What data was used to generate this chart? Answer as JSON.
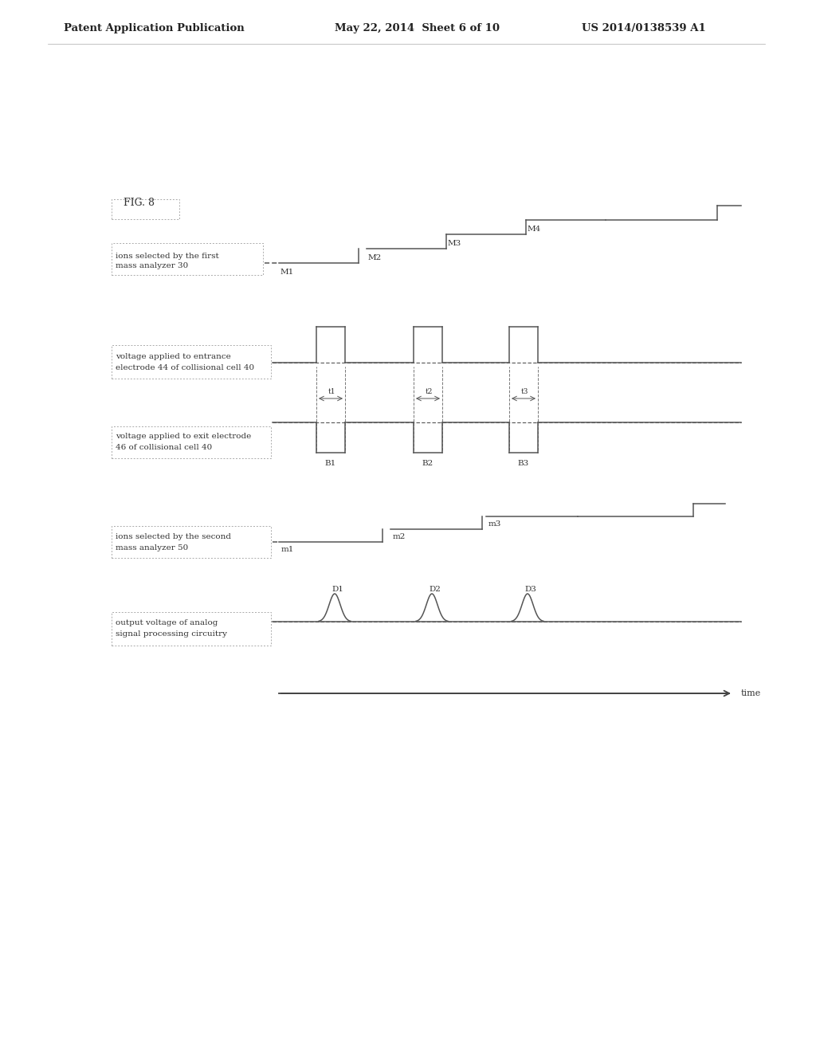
{
  "bg_color": "#ffffff",
  "header_left": "Patent Application Publication",
  "header_mid": "May 22, 2014  Sheet 6 of 10",
  "header_right": "US 2014/0138539 A1",
  "fig_label": "FIG. 8",
  "panel1_label": "ions selected by the first\nmass analyzer 30",
  "panel2_label": "voltage applied to entrance\nelectrode 44 of collisional cell 40",
  "panel3_label": "voltage applied to exit electrode\n46 of collisional cell 40",
  "panel4_label": "ions selected by the second\nmass analyzer 50",
  "panel5_label": "output voltage of analog\nsignal processing circuitry",
  "time_label": "time"
}
